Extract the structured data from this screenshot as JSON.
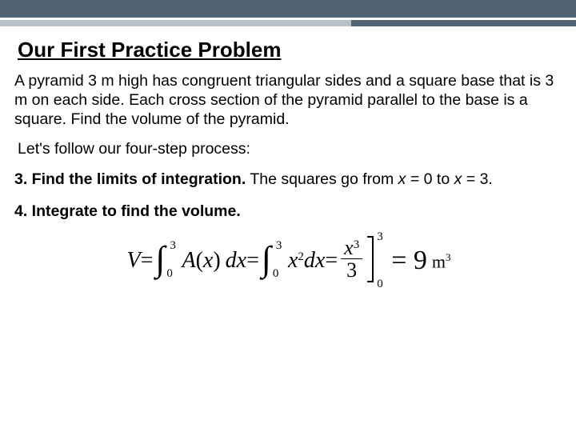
{
  "header": {
    "bar_dark_color": "#4f6373",
    "bar_light_color": "#b7c0c7",
    "split_percent": 61
  },
  "title": "Our First Practice Problem",
  "problem_text": "A pyramid 3 m high has congruent triangular sides and a square base that is 3 m on each side.  Each cross section of the pyramid parallel to the base is a square.  Find the volume of the pyramid.",
  "process_intro": "Let's follow our four-step process:",
  "step3": {
    "label": "3. Find the limits of integration.",
    "text_before_x1": "  The squares go from ",
    "x_var": "x",
    "eq0": " = 0 to ",
    "eq3": " = 3."
  },
  "step4": {
    "label": "4. Integrate to find the volume."
  },
  "equation": {
    "V": "V",
    "eq": " = ",
    "int_lower": "0",
    "int_upper": "3",
    "A": "A",
    "open": "(",
    "x": "x",
    "close": ")",
    "dx": "dx",
    "x2": "x",
    "sq": "2",
    "frac_num_x": "x",
    "frac_num_pow": "3",
    "frac_den": "3",
    "eval_upper": "3",
    "eval_lower": "0",
    "result": "= 9",
    "unit_m": "m",
    "unit_pow": "3"
  }
}
